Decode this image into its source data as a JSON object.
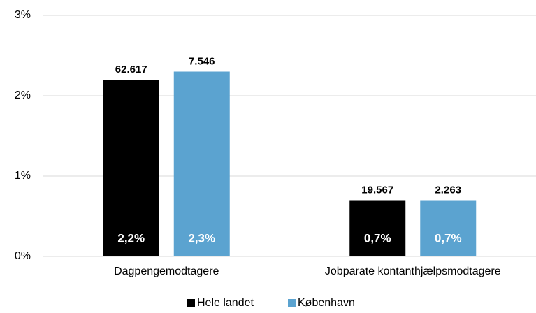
{
  "chart_data": {
    "type": "bar",
    "categories": [
      "Dagpengemodtagere",
      "Jobparate kontanthjælpsmodtagere"
    ],
    "series": [
      {
        "name": "Hele landet",
        "color": "#000000",
        "values": [
          2.2,
          0.7
        ],
        "value_labels": [
          "2,2%",
          "0,7%"
        ],
        "top_labels": [
          "62.617",
          "19.567"
        ]
      },
      {
        "name": "København",
        "color": "#5ba3d0",
        "values": [
          2.3,
          0.7
        ],
        "value_labels": [
          "2,3%",
          "0,7%"
        ],
        "top_labels": [
          "7.546",
          "2.263"
        ]
      }
    ],
    "ylim": [
      0,
      3
    ],
    "yticks": [
      {
        "value": 0,
        "label": "0%"
      },
      {
        "value": 1,
        "label": "1%"
      },
      {
        "value": 2,
        "label": "2%"
      },
      {
        "value": 3,
        "label": "3%"
      }
    ],
    "grid": true,
    "legend": "bottom"
  }
}
